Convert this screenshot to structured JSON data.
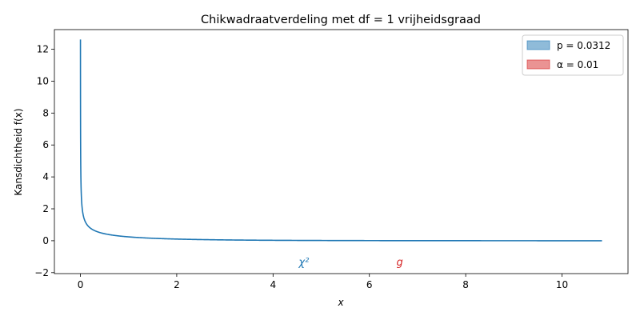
{
  "chart_data": {
    "type": "line",
    "title": "Chikwadraatverdeling met df = 1 vrijheidsgraad",
    "xlabel": "x",
    "ylabel": "Kansdichtheid f(x)",
    "xlim": [
      -0.54,
      11.37
    ],
    "ylim": [
      -2.06,
      13.23
    ],
    "x_ticks": [
      0,
      2,
      4,
      6,
      8,
      10
    ],
    "y_ticks": [
      -2,
      0,
      2,
      4,
      6,
      8,
      10,
      12
    ],
    "grid": false,
    "legend_position": "top-right",
    "df": 1,
    "x_range": [
      0.001,
      10.83
    ],
    "series": [
      {
        "color": "#1f77b4",
        "x": [
          0.001,
          0.002,
          0.004,
          0.006,
          0.01,
          0.015,
          0.02,
          0.03,
          0.05,
          0.08,
          0.12,
          0.17,
          0.25,
          0.35,
          0.5,
          0.7,
          1.0,
          1.4,
          2.0,
          2.7,
          3.5,
          4.5,
          5.5,
          6.5,
          7.5,
          8.5,
          9.5,
          10.83
        ],
        "values": [
          12.61,
          8.92,
          6.3,
          5.14,
          3.97,
          3.24,
          2.8,
          2.28,
          1.76,
          1.38,
          1.12,
          0.94,
          0.77,
          0.63,
          0.48,
          0.38,
          0.24,
          0.17,
          0.1,
          0.06,
          0.04,
          0.02,
          0.01,
          0.01,
          0.0,
          0.0,
          0.0,
          0.0
        ]
      }
    ],
    "shaded_regions": [
      {
        "label": "p = 0.0312",
        "from": 4.64,
        "to": 10.83,
        "color": "#1f77b4"
      },
      {
        "label": "α = 0.01",
        "from": 6.63,
        "to": 10.83,
        "color": "#d62728"
      }
    ],
    "markers": [
      {
        "label": "χ²",
        "x": 4.64,
        "color": "#1f77b4"
      },
      {
        "label": "g",
        "x": 6.63,
        "color": "#d62728"
      }
    ]
  }
}
